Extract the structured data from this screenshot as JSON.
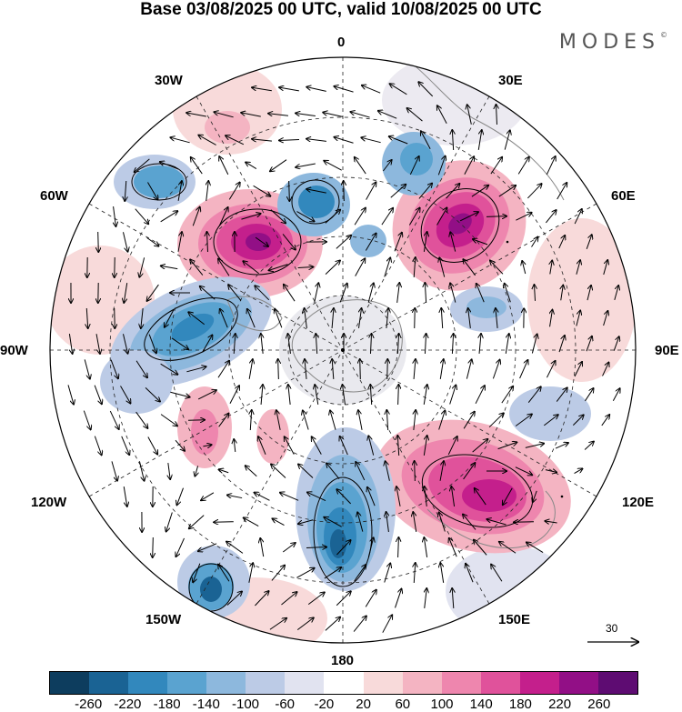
{
  "header": {
    "title": "Base 03/08/2025 00 UTC, valid 10/08/2025 00 UTC",
    "brand": "MODES"
  },
  "longitude_labels": {
    "top": "0",
    "e30": "30E",
    "e60": "60E",
    "e90": "90E",
    "e120": "120E",
    "e150": "150E",
    "bottom": "180",
    "w150": "150W",
    "w120": "120W",
    "w90": "90W",
    "w60": "60W",
    "w30": "30W"
  },
  "reference_vector": {
    "value": "30"
  },
  "colorbar": {
    "colors": [
      "#0d3d5e",
      "#1a6394",
      "#3288bd",
      "#5aa3d0",
      "#8db8dd",
      "#bccbe6",
      "#e1e3f0",
      "#ffffff",
      "#f8dada",
      "#f4b4c2",
      "#ee86ae",
      "#e0529b",
      "#c41f8c",
      "#920f86",
      "#5e0c72"
    ],
    "ticks": [
      "-260",
      "-220",
      "-180",
      "-140",
      "-100",
      "-60",
      "-20",
      "20",
      "60",
      "100",
      "140",
      "180",
      "220",
      "260"
    ]
  },
  "anomaly_centers": [
    {
      "label": "positive",
      "lon": "60E region",
      "level": 230
    },
    {
      "label": "positive",
      "lon": "40W region",
      "level": 230
    },
    {
      "label": "positive",
      "lon": "130E region",
      "level": 200
    },
    {
      "label": "negative",
      "lon": "170E region",
      "level": -190
    },
    {
      "label": "negative",
      "lon": "80W region",
      "level": -170
    }
  ]
}
